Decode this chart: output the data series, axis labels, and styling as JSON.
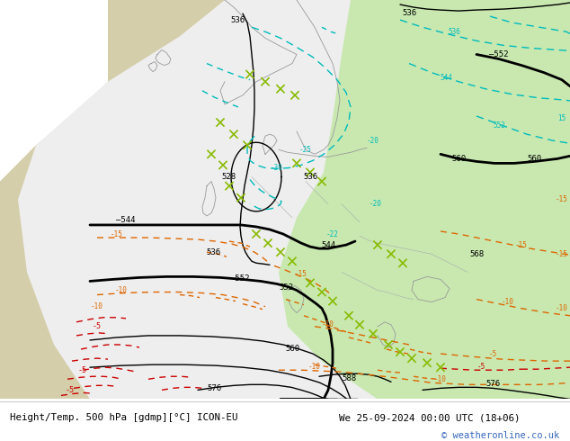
{
  "title_left": "Height/Temp. 500 hPa [gdmp][°C] ICON-EU",
  "title_right": "We 25-09-2024 00:00 UTC (18+06)",
  "copyright": "© weatheronline.co.uk",
  "fig_width": 6.34,
  "fig_height": 4.9,
  "dpi": 100,
  "bg_color": "#ffffff",
  "sea_color": "#c8cfd4",
  "land_color": "#d4ceaa",
  "white_wedge_color": "#eeeeee",
  "green_color": "#c8e8b0",
  "footer_text_color": "#000000",
  "copyright_color": "#3366bb",
  "font_family": "monospace",
  "contour_color": "#000000",
  "cyan_color": "#00bbbb",
  "orange_color": "#dd6600",
  "red_color": "#cc0000",
  "lime_color": "#88bb00"
}
